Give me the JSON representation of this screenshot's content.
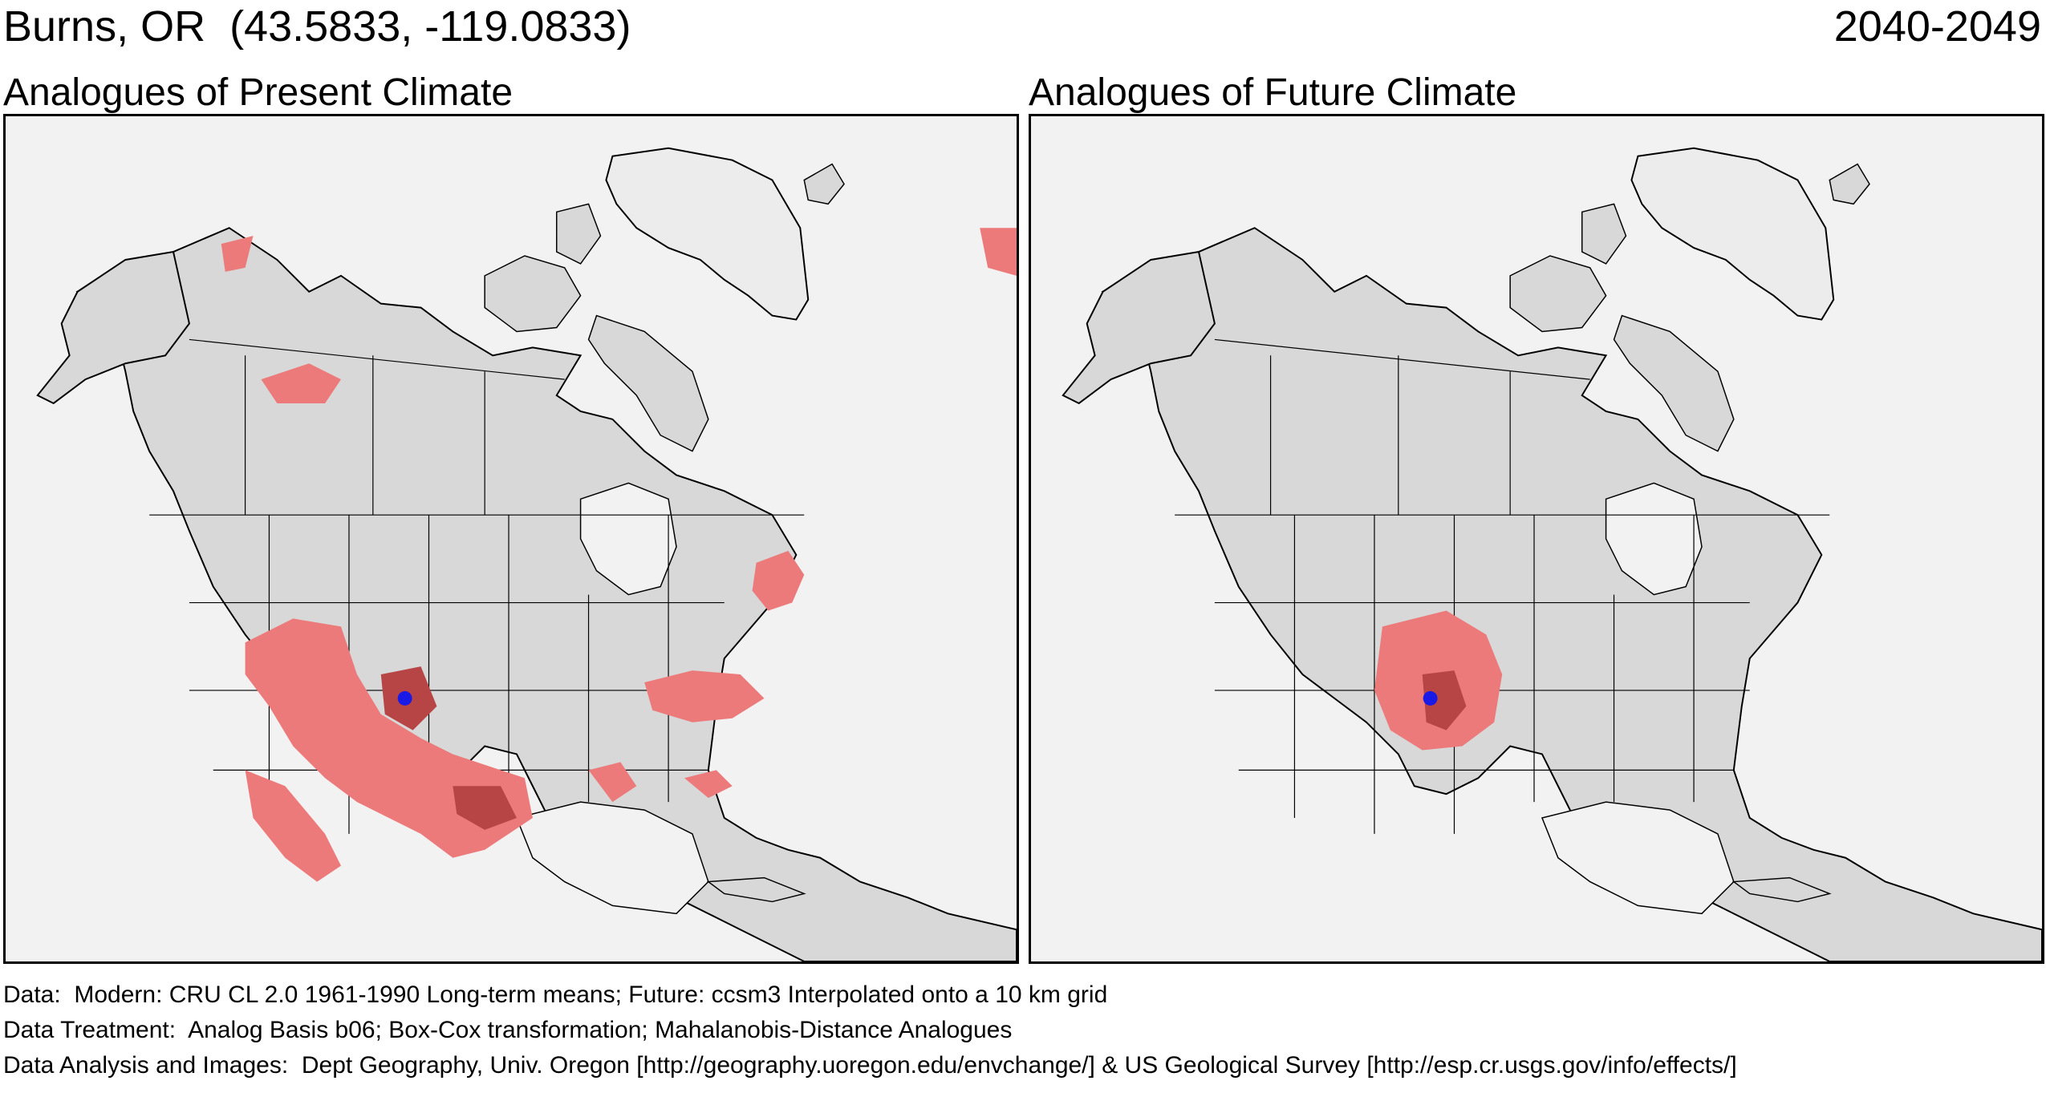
{
  "header": {
    "location": "Burns, OR  (43.5833, -119.0833)",
    "period": "2040-2049"
  },
  "panels": [
    {
      "label": "Analogues of Present Climate",
      "analogue_extent": "widespread"
    },
    {
      "label": "Analogues of Future Climate",
      "analogue_extent": "local"
    }
  ],
  "colors": {
    "ocean": "#f2f2f2",
    "land": "#d8d8d8",
    "greenland": "#ececec",
    "analogue": "#ec7a7a",
    "analogue_strong": "#b84545",
    "site_marker": "#1a1ae6"
  },
  "footer": {
    "data": "Data:  Modern: CRU CL 2.0 1961-1990 Long-term means; Future: ccsm3 Interpolated onto a 10 km grid",
    "treatment": "Data Treatment:  Analog Basis b06; Box-Cox transformation; Mahalanobis-Distance Analogues",
    "analysis": "Data Analysis and Images:  Dept Geography, Univ. Oregon [http://geography.uoregon.edu/envchange/] & US Geological Survey [http://esp.cr.usgs.gov/info/effects/]"
  }
}
